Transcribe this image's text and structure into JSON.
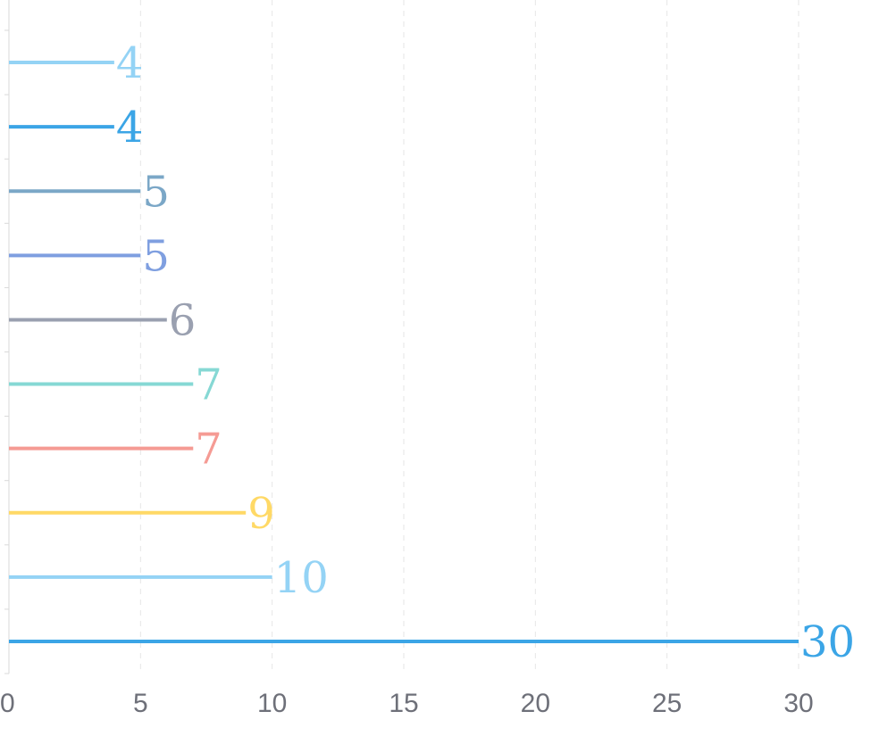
{
  "chart_data": {
    "type": "bar",
    "orientation": "horizontal",
    "values": [
      30,
      10,
      9,
      7,
      7,
      6,
      5,
      5,
      4,
      4
    ],
    "colors": [
      "#3ba5e6",
      "#94d3f5",
      "#ffd966",
      "#f59b94",
      "#86d8d4",
      "#9aa0b0",
      "#7f9fe0",
      "#7ba7c7",
      "#3ba5e6",
      "#94d3f5"
    ],
    "x_ticks": [
      "0",
      "5",
      "10",
      "15",
      "20",
      "25",
      "30"
    ],
    "xlim": [
      0,
      30
    ],
    "grid": true,
    "title": "",
    "xlabel": "",
    "ylabel": ""
  }
}
